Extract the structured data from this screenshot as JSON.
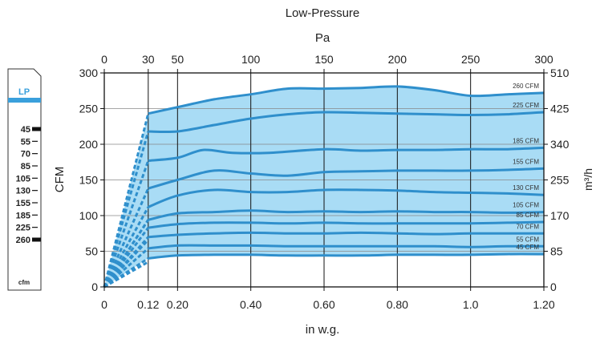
{
  "chart_data": {
    "type": "line",
    "title": "Low-Pressure",
    "top_axis_label": "Pa",
    "top_ticks": [
      "0",
      "30",
      "50",
      "100",
      "150",
      "200",
      "250",
      "300"
    ],
    "bottom_axis_label": "in w.g.",
    "bottom_ticks": [
      "0",
      "0.12",
      "0.20",
      "0.40",
      "0.60",
      "0.80",
      "1.0",
      "1.20"
    ],
    "left_axis_label": "CFM",
    "left_ticks": [
      "0",
      "50",
      "100",
      "150",
      "200",
      "250",
      "300"
    ],
    "right_axis_label": "m³/h",
    "right_ticks": [
      "0",
      "85",
      "170",
      "255",
      "340",
      "425",
      "510"
    ],
    "xlim": [
      0,
      1.2
    ],
    "ylim": [
      0,
      300
    ],
    "grid": true,
    "x_ticks_values": [
      0,
      0.12,
      0.2,
      0.4,
      0.6,
      0.8,
      1.0,
      1.2
    ],
    "y_ticks_values": [
      0,
      50,
      100,
      150,
      200,
      250,
      300
    ],
    "colors": {
      "curve": "#2f8fcc",
      "fill": "#a9dcf5",
      "grid": "#888888",
      "gauge_header": "#3aa0dc"
    },
    "series": [
      {
        "name": "260 CFM",
        "points": [
          [
            0.12,
            243
          ],
          [
            0.2,
            252
          ],
          [
            0.3,
            263
          ],
          [
            0.4,
            270
          ],
          [
            0.5,
            278
          ],
          [
            0.6,
            278
          ],
          [
            0.7,
            279
          ],
          [
            0.8,
            281
          ],
          [
            0.9,
            276
          ],
          [
            1.0,
            268
          ],
          [
            1.1,
            270
          ],
          [
            1.2,
            272
          ]
        ]
      },
      {
        "name": "225 CFM",
        "points": [
          [
            0.12,
            218
          ],
          [
            0.2,
            218
          ],
          [
            0.3,
            227
          ],
          [
            0.4,
            236
          ],
          [
            0.5,
            242
          ],
          [
            0.6,
            245
          ],
          [
            0.7,
            244
          ],
          [
            0.8,
            243
          ],
          [
            0.9,
            242
          ],
          [
            1.0,
            241
          ],
          [
            1.1,
            242
          ],
          [
            1.2,
            245
          ]
        ]
      },
      {
        "name": "185 CFM",
        "points": [
          [
            0.12,
            177
          ],
          [
            0.2,
            181
          ],
          [
            0.27,
            192
          ],
          [
            0.35,
            188
          ],
          [
            0.45,
            188
          ],
          [
            0.6,
            193
          ],
          [
            0.7,
            191
          ],
          [
            0.8,
            192
          ],
          [
            0.9,
            192
          ],
          [
            1.0,
            193
          ],
          [
            1.1,
            193
          ],
          [
            1.2,
            195
          ]
        ]
      },
      {
        "name": "155 CFM",
        "points": [
          [
            0.12,
            138
          ],
          [
            0.2,
            150
          ],
          [
            0.3,
            163
          ],
          [
            0.4,
            159
          ],
          [
            0.5,
            156
          ],
          [
            0.6,
            161
          ],
          [
            0.7,
            162
          ],
          [
            0.8,
            163
          ],
          [
            0.9,
            163
          ],
          [
            1.0,
            163
          ],
          [
            1.1,
            164
          ],
          [
            1.2,
            166
          ]
        ]
      },
      {
        "name": "130 CFM",
        "points": [
          [
            0.12,
            112
          ],
          [
            0.2,
            128
          ],
          [
            0.3,
            136
          ],
          [
            0.4,
            133
          ],
          [
            0.5,
            133
          ],
          [
            0.6,
            136
          ],
          [
            0.7,
            136
          ],
          [
            0.8,
            135
          ],
          [
            0.9,
            133
          ],
          [
            1.0,
            132
          ],
          [
            1.1,
            131
          ],
          [
            1.2,
            129
          ]
        ]
      },
      {
        "name": "105 CFM",
        "points": [
          [
            0.12,
            94
          ],
          [
            0.2,
            103
          ],
          [
            0.3,
            105
          ],
          [
            0.4,
            107
          ],
          [
            0.5,
            105
          ],
          [
            0.6,
            106
          ],
          [
            0.7,
            105
          ],
          [
            0.8,
            106
          ],
          [
            0.9,
            105
          ],
          [
            1.0,
            105
          ],
          [
            1.1,
            104
          ],
          [
            1.2,
            105
          ]
        ]
      },
      {
        "name": "85 CFM",
        "points": [
          [
            0.12,
            83
          ],
          [
            0.2,
            88
          ],
          [
            0.3,
            90
          ],
          [
            0.4,
            90
          ],
          [
            0.5,
            89
          ],
          [
            0.6,
            90
          ],
          [
            0.7,
            89
          ],
          [
            0.8,
            89
          ],
          [
            0.9,
            89
          ],
          [
            1.0,
            89
          ],
          [
            1.1,
            90
          ],
          [
            1.2,
            91
          ]
        ]
      },
      {
        "name": "70 CFM",
        "points": [
          [
            0.12,
            70
          ],
          [
            0.2,
            73
          ],
          [
            0.3,
            75
          ],
          [
            0.4,
            76
          ],
          [
            0.5,
            75
          ],
          [
            0.6,
            75
          ],
          [
            0.7,
            76
          ],
          [
            0.8,
            75
          ],
          [
            0.9,
            74
          ],
          [
            1.0,
            75
          ],
          [
            1.1,
            75
          ],
          [
            1.2,
            75
          ]
        ]
      },
      {
        "name": "55 CFM",
        "points": [
          [
            0.12,
            54
          ],
          [
            0.2,
            58
          ],
          [
            0.3,
            58
          ],
          [
            0.4,
            58
          ],
          [
            0.5,
            57
          ],
          [
            0.6,
            57
          ],
          [
            0.7,
            57
          ],
          [
            0.8,
            57
          ],
          [
            0.9,
            57
          ],
          [
            1.0,
            56
          ],
          [
            1.1,
            57
          ],
          [
            1.2,
            57
          ]
        ]
      },
      {
        "name": "45 CFM",
        "points": [
          [
            0.12,
            40
          ],
          [
            0.2,
            44
          ],
          [
            0.3,
            45
          ],
          [
            0.4,
            45
          ],
          [
            0.5,
            44
          ],
          [
            0.6,
            44
          ],
          [
            0.7,
            44
          ],
          [
            0.8,
            45
          ],
          [
            0.9,
            45
          ],
          [
            1.0,
            45
          ],
          [
            1.1,
            46
          ],
          [
            1.2,
            46
          ]
        ]
      }
    ],
    "extra_dashed_starts": [
      35,
      66,
      94
    ]
  },
  "gauge": {
    "header": "LP",
    "unit": "cfm",
    "scale": [
      {
        "label": "45",
        "marker": true
      },
      {
        "label": "55",
        "marker": false
      },
      {
        "label": "70",
        "marker": false
      },
      {
        "label": "85",
        "marker": false
      },
      {
        "label": "105",
        "marker": false
      },
      {
        "label": "130",
        "marker": false
      },
      {
        "label": "155",
        "marker": false
      },
      {
        "label": "185",
        "marker": false
      },
      {
        "label": "225",
        "marker": false
      },
      {
        "label": "260",
        "marker": true
      }
    ]
  }
}
